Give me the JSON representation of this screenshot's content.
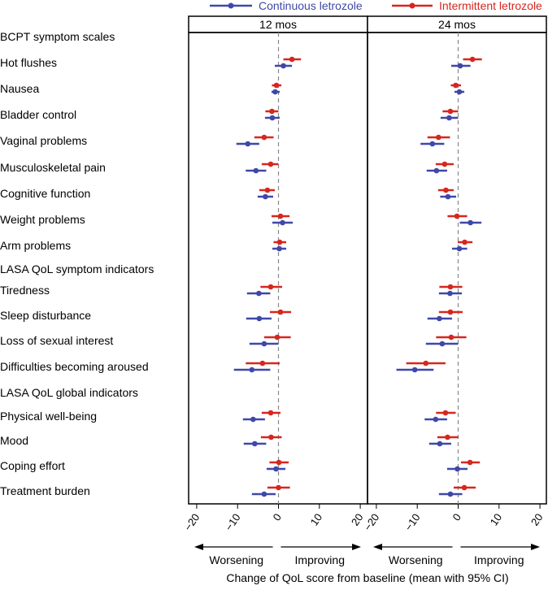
{
  "chart_data": {
    "type": "forest",
    "xlabel": "Change of QoL score from baseline (mean with 95% CI)",
    "direction_labels": {
      "left": "Worsening",
      "right": "Improving"
    },
    "xlim": [
      -20,
      20
    ],
    "xticks": [
      -20,
      -10,
      0,
      10,
      20
    ],
    "reference_line": 0,
    "colors": {
      "continuous": "#3f48a8",
      "intermittent": "#d7261e"
    },
    "legend": [
      {
        "key": "continuous",
        "label": "Continuous letrozole"
      },
      {
        "key": "intermittent",
        "label": "Intermittent letrozole"
      }
    ],
    "panels": [
      "12 mos",
      "24 mos"
    ],
    "rows": [
      {
        "label": "BCPT symptom scales",
        "header": true
      },
      {
        "label": "Hot flushes",
        "data": [
          {
            "intermittent": [
              3.3,
              1.2,
              5.5
            ],
            "continuous": [
              1.2,
              -0.9,
              3.3
            ]
          },
          {
            "intermittent": [
              3.5,
              1.2,
              5.8
            ],
            "continuous": [
              0.5,
              -1.7,
              3.0
            ]
          }
        ]
      },
      {
        "label": "Nausea",
        "data": [
          {
            "intermittent": [
              -0.5,
              -1.6,
              0.7
            ],
            "continuous": [
              -0.8,
              -1.7,
              0.3
            ]
          },
          {
            "intermittent": [
              -0.6,
              -1.8,
              0.7
            ],
            "continuous": [
              0.3,
              -0.9,
              1.5
            ]
          }
        ]
      },
      {
        "label": "Bladder control",
        "data": [
          {
            "intermittent": [
              -1.6,
              -3.2,
              0.0
            ],
            "continuous": [
              -1.5,
              -3.3,
              0.3
            ]
          },
          {
            "intermittent": [
              -1.9,
              -3.8,
              0.0
            ],
            "continuous": [
              -2.2,
              -4.3,
              0.0
            ]
          }
        ]
      },
      {
        "label": "Vaginal problems",
        "data": [
          {
            "intermittent": [
              -3.5,
              -5.9,
              -1.2
            ],
            "continuous": [
              -7.5,
              -10.3,
              -4.7
            ]
          },
          {
            "intermittent": [
              -4.8,
              -7.5,
              -2.0
            ],
            "continuous": [
              -6.3,
              -9.2,
              -3.4
            ]
          }
        ]
      },
      {
        "label": "Musculoskeletal pain",
        "data": [
          {
            "intermittent": [
              -1.9,
              -4.1,
              0.0
            ],
            "continuous": [
              -5.5,
              -8.0,
              -3.0
            ]
          },
          {
            "intermittent": [
              -3.3,
              -5.5,
              -1.1
            ],
            "continuous": [
              -5.3,
              -7.7,
              -2.7
            ]
          }
        ]
      },
      {
        "label": "Cognitive function",
        "data": [
          {
            "intermittent": [
              -2.7,
              -4.7,
              -0.9
            ],
            "continuous": [
              -3.2,
              -5.1,
              -1.3
            ]
          },
          {
            "intermittent": [
              -3.0,
              -4.9,
              -1.1
            ],
            "continuous": [
              -2.5,
              -4.4,
              -0.5
            ]
          }
        ]
      },
      {
        "label": "Weight problems",
        "data": [
          {
            "intermittent": [
              0.5,
              -1.7,
              2.7
            ],
            "continuous": [
              1.0,
              -1.5,
              3.5
            ]
          },
          {
            "intermittent": [
              -0.3,
              -2.6,
              2.2
            ],
            "continuous": [
              3.0,
              0.4,
              5.7
            ]
          }
        ]
      },
      {
        "label": "Arm problems",
        "data": [
          {
            "intermittent": [
              0.3,
              -1.2,
              1.9
            ],
            "continuous": [
              0.2,
              -1.5,
              1.9
            ]
          },
          {
            "intermittent": [
              1.6,
              -0.1,
              3.5
            ],
            "continuous": [
              0.3,
              -1.5,
              2.2
            ]
          }
        ]
      },
      {
        "label": "LASA QoL symptom indicators",
        "header": true
      },
      {
        "label": "Tiredness",
        "data": [
          {
            "intermittent": [
              -1.9,
              -4.4,
              0.9
            ],
            "continuous": [
              -4.8,
              -7.7,
              -2.0
            ]
          },
          {
            "intermittent": [
              -1.9,
              -4.6,
              1.0
            ],
            "continuous": [
              -2.0,
              -4.7,
              0.9
            ]
          }
        ]
      },
      {
        "label": "Sleep disturbance",
        "data": [
          {
            "intermittent": [
              0.5,
              -2.1,
              3.1
            ],
            "continuous": [
              -4.7,
              -7.9,
              -1.7
            ]
          },
          {
            "intermittent": [
              -1.9,
              -4.7,
              1.1
            ],
            "continuous": [
              -4.6,
              -7.5,
              -1.5
            ]
          }
        ]
      },
      {
        "label": "Loss of sexual interest",
        "data": [
          {
            "intermittent": [
              -0.3,
              -3.5,
              3.0
            ],
            "continuous": [
              -3.5,
              -7.1,
              0.0
            ]
          },
          {
            "intermittent": [
              -1.7,
              -5.4,
              2.0
            ],
            "continuous": [
              -3.9,
              -7.9,
              0.0
            ]
          }
        ]
      },
      {
        "label": "Difficulties becoming aroused",
        "data": [
          {
            "intermittent": [
              -3.9,
              -8.0,
              0.3
            ],
            "continuous": [
              -6.5,
              -10.9,
              -2.0
            ]
          },
          {
            "intermittent": [
              -7.9,
              -12.7,
              -3.1
            ],
            "continuous": [
              -10.6,
              -15.1,
              -6.0
            ]
          }
        ]
      },
      {
        "label": "LASA QoL global indicators",
        "header": true
      },
      {
        "label": "Physical well-being",
        "data": [
          {
            "intermittent": [
              -1.9,
              -4.1,
              0.5
            ],
            "continuous": [
              -6.2,
              -8.7,
              -3.3
            ]
          },
          {
            "intermittent": [
              -3.1,
              -5.4,
              -0.6
            ],
            "continuous": [
              -5.5,
              -8.2,
              -2.7
            ]
          }
        ]
      },
      {
        "label": "Mood",
        "data": [
          {
            "intermittent": [
              -1.8,
              -4.3,
              0.8
            ],
            "continuous": [
              -5.8,
              -8.5,
              -3.0
            ]
          },
          {
            "intermittent": [
              -2.6,
              -5.1,
              0.0
            ],
            "continuous": [
              -4.5,
              -7.1,
              -1.7
            ]
          }
        ]
      },
      {
        "label": "Coping effort",
        "data": [
          {
            "intermittent": [
              0.1,
              -2.2,
              2.5
            ],
            "continuous": [
              -0.6,
              -2.9,
              1.7
            ]
          },
          {
            "intermittent": [
              2.9,
              0.7,
              5.3
            ],
            "continuous": [
              -0.2,
              -2.7,
              2.3
            ]
          }
        ]
      },
      {
        "label": "Treatment burden",
        "data": [
          {
            "intermittent": [
              0.0,
              -2.7,
              2.8
            ],
            "continuous": [
              -3.5,
              -6.5,
              -0.7
            ]
          },
          {
            "intermittent": [
              1.5,
              -1.1,
              4.3
            ],
            "continuous": [
              -1.9,
              -4.7,
              1.0
            ]
          }
        ]
      }
    ]
  }
}
